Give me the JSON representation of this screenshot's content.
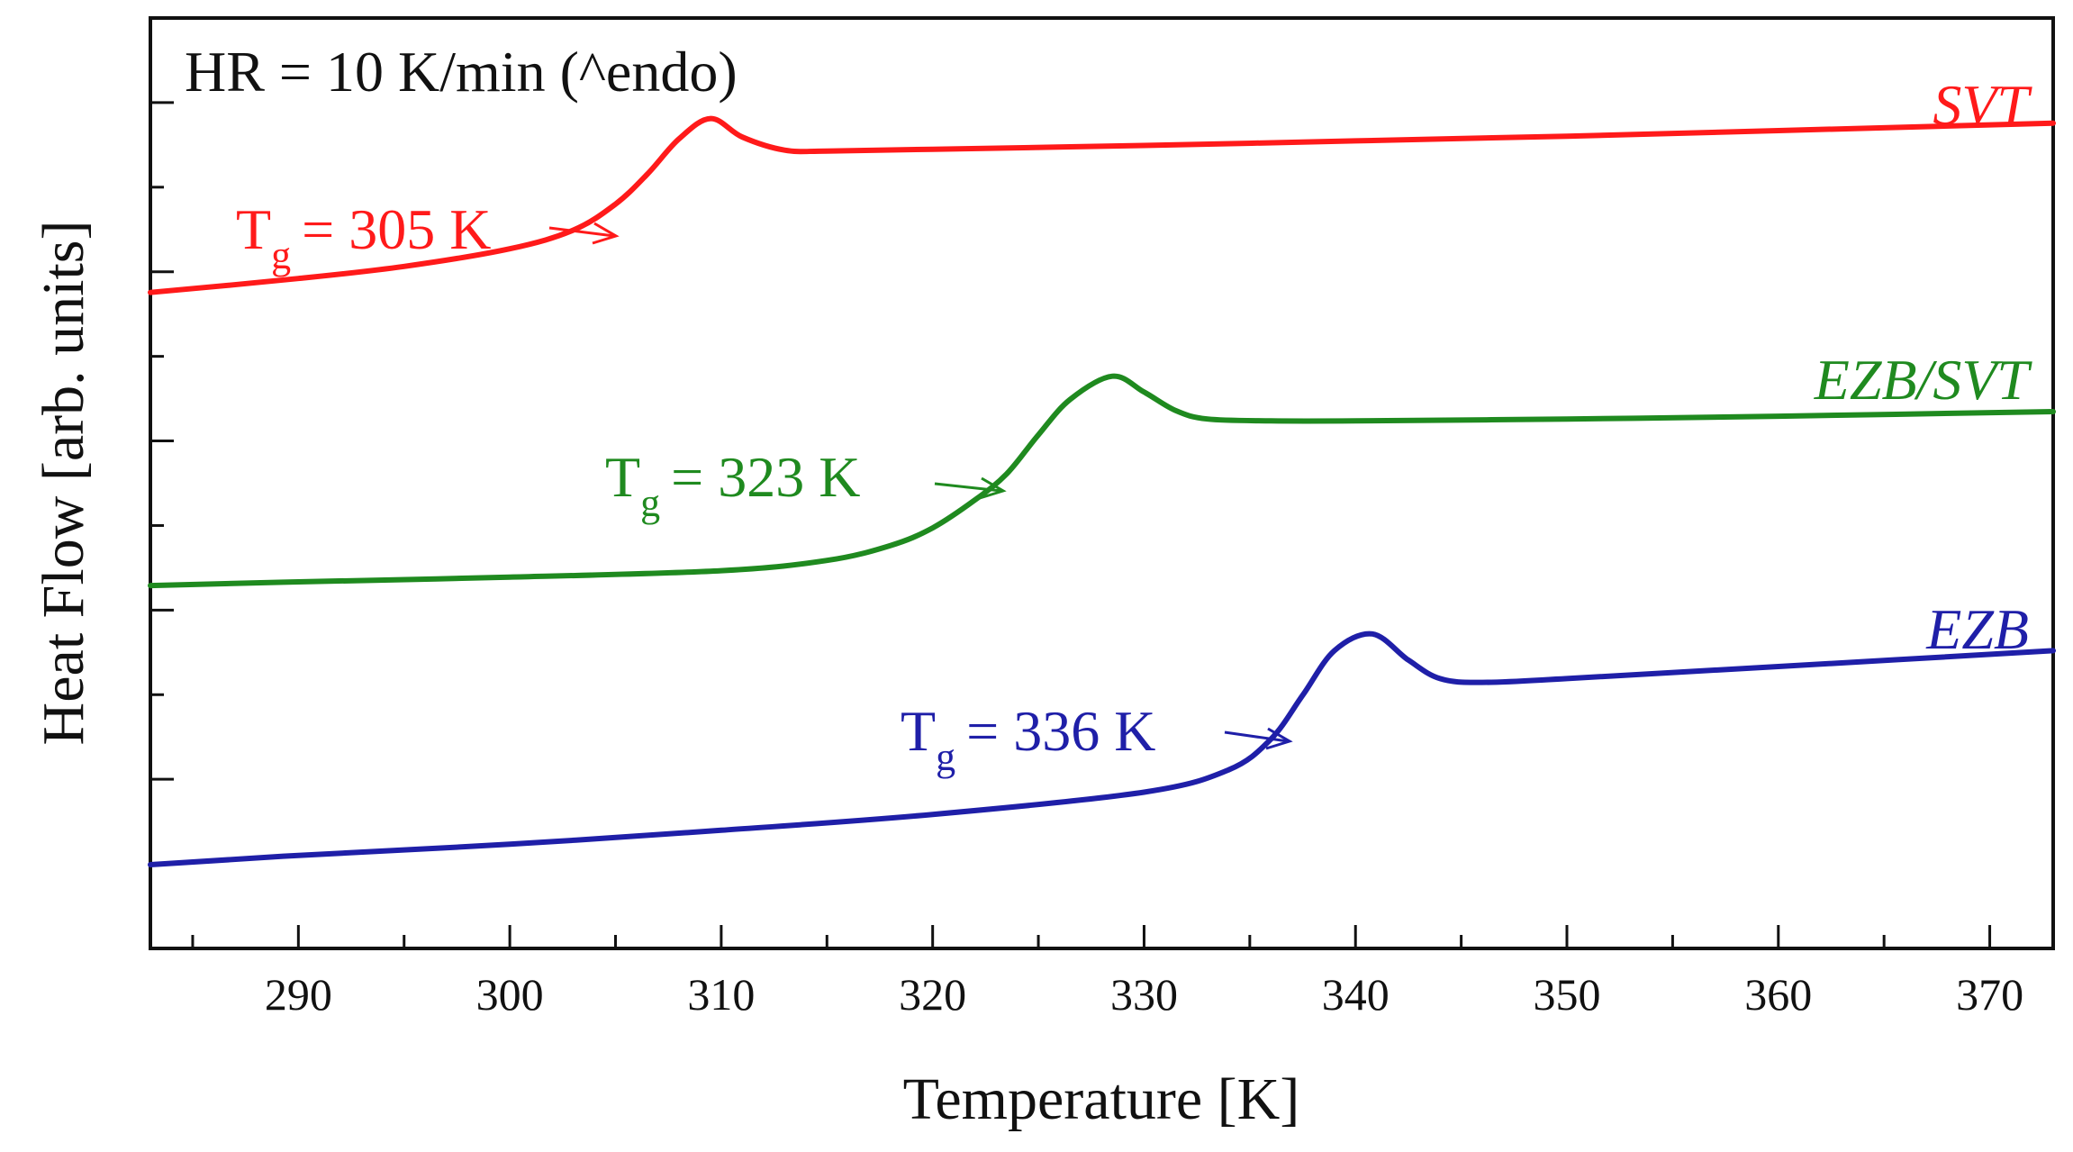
{
  "chart_data": {
    "type": "line",
    "title": "",
    "annotation": "HR = 10 K/min (^endo)",
    "xlabel": "Temperature [K]",
    "ylabel": "Heat Flow [arb. units]",
    "xlim": [
      283,
      373
    ],
    "ylim": [
      0,
      10
    ],
    "x_ticks": [
      290,
      300,
      310,
      320,
      330,
      340,
      350,
      360,
      370
    ],
    "x_tick_labels": [
      "290",
      "300",
      "310",
      "320",
      "330",
      "340",
      "350",
      "360",
      "370"
    ],
    "y_tick_labels_shown": false,
    "grid": false,
    "series": [
      {
        "name": "SVT",
        "color": "#ff1a1a",
        "tg_label": "T",
        "tg_sub": "g",
        "tg_value": "= 305 K",
        "tg_x": 305,
        "x": [
          283,
          290,
          295,
          300,
          303,
          305,
          306.5,
          308,
          309.5,
          311,
          313,
          315,
          320,
          330,
          340,
          350,
          360,
          373
        ],
        "y": [
          7.05,
          7.2,
          7.33,
          7.52,
          7.72,
          8.0,
          8.32,
          8.7,
          8.92,
          8.72,
          8.58,
          8.57,
          8.59,
          8.63,
          8.68,
          8.73,
          8.79,
          8.87
        ]
      },
      {
        "name": "EZB/SVT",
        "color": "#1f8a1f",
        "tg_label": "T",
        "tg_sub": "g",
        "tg_value": "= 323 K",
        "tg_x": 323,
        "x": [
          283,
          290,
          300,
          310,
          315,
          318,
          320,
          322,
          323.5,
          325,
          326.5,
          328.5,
          330,
          331.5,
          333,
          336,
          340,
          350,
          360,
          373
        ],
        "y": [
          3.9,
          3.94,
          3.99,
          4.06,
          4.17,
          4.33,
          4.52,
          4.82,
          5.1,
          5.52,
          5.9,
          6.15,
          5.98,
          5.78,
          5.69,
          5.67,
          5.67,
          5.69,
          5.72,
          5.77
        ]
      },
      {
        "name": "EZB",
        "color": "#1f1fa8",
        "tg_label": "T",
        "tg_sub": "g",
        "tg_value": "= 336 K",
        "tg_x": 336,
        "x": [
          283,
          290,
          300,
          310,
          320,
          330,
          334,
          336,
          337.5,
          339,
          340.8,
          342.5,
          344,
          346,
          350,
          360,
          373
        ],
        "y": [
          0.9,
          1.0,
          1.12,
          1.27,
          1.44,
          1.68,
          1.92,
          2.25,
          2.72,
          3.2,
          3.38,
          3.1,
          2.9,
          2.86,
          2.9,
          3.03,
          3.2
        ]
      }
    ]
  }
}
